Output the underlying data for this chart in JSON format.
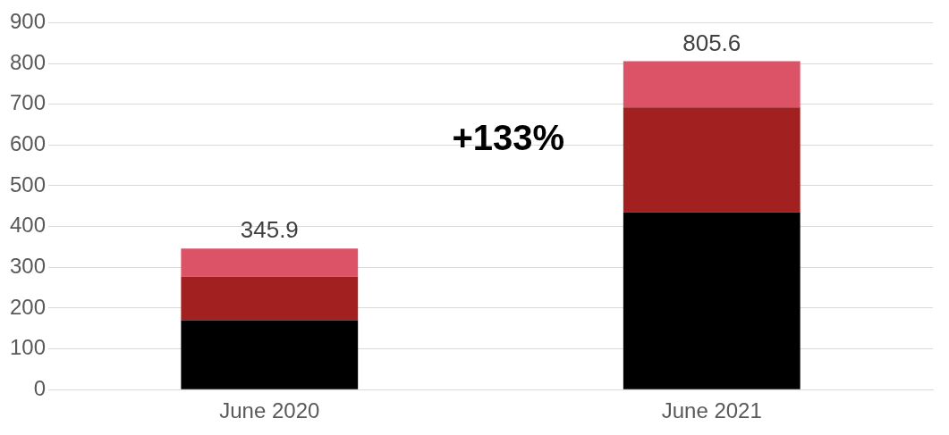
{
  "chart_data": {
    "type": "bar",
    "stacked": true,
    "categories": [
      "June 2020",
      "June 2021"
    ],
    "series": [
      {
        "color": "#000000",
        "values": [
          170,
          435
        ]
      },
      {
        "color": "#a32020",
        "values": [
          107,
          257
        ]
      },
      {
        "color": "#dc5368",
        "values": [
          68.9,
          113.6
        ]
      }
    ],
    "totals": [
      "345.9",
      "805.6"
    ],
    "ylim": [
      0,
      900
    ],
    "yticks": [
      0,
      100,
      200,
      300,
      400,
      500,
      600,
      700,
      800,
      900
    ],
    "grid": "y",
    "legend": false,
    "annotations": [
      "+133%"
    ]
  }
}
